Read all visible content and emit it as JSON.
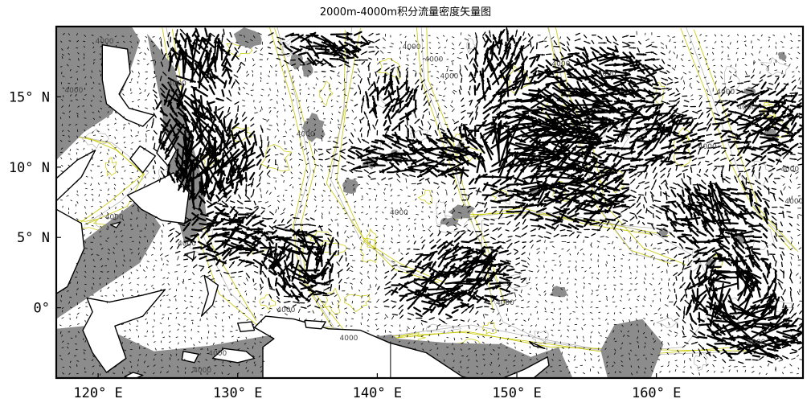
{
  "chart_data": {
    "type": "quiver",
    "title": "2000m-4000m积分流量密度矢量图",
    "xlim": [
      117,
      170.5
    ],
    "ylim": [
      -5,
      20
    ],
    "x_ticks": [
      {
        "value": 120,
        "label": "120° E"
      },
      {
        "value": 130,
        "label": "130° E"
      },
      {
        "value": 140,
        "label": "140° E"
      },
      {
        "value": 150,
        "label": "150° E"
      },
      {
        "value": 160,
        "label": "160° E"
      }
    ],
    "y_ticks": [
      {
        "value": 15,
        "label": "15° N"
      },
      {
        "value": 10,
        "label": "10° N"
      },
      {
        "value": 5,
        "label": "5° N"
      },
      {
        "value": 0,
        "label": "0°"
      }
    ],
    "contour_labels": [
      {
        "lon": 119.8,
        "lat": 18.8,
        "text": "4000"
      },
      {
        "lon": 117.6,
        "lat": 15.3,
        "text": "4000"
      },
      {
        "lon": 125.0,
        "lat": 15.8,
        "text": "4000"
      },
      {
        "lon": 120.5,
        "lat": 6.3,
        "text": "4000"
      },
      {
        "lon": 125.7,
        "lat": 4.4,
        "text": "4000"
      },
      {
        "lon": 134.2,
        "lat": 12.2,
        "text": "4000"
      },
      {
        "lon": 141.8,
        "lat": 18.4,
        "text": "4000"
      },
      {
        "lon": 143.4,
        "lat": 17.5,
        "text": "4000"
      },
      {
        "lon": 144.5,
        "lat": 16.3,
        "text": "4000"
      },
      {
        "lon": 140.9,
        "lat": 6.6,
        "text": "4000"
      },
      {
        "lon": 132.8,
        "lat": -0.3,
        "text": "4000"
      },
      {
        "lon": 127.9,
        "lat": -3.4,
        "text": "4000"
      },
      {
        "lon": 126.8,
        "lat": -4.6,
        "text": "4000"
      },
      {
        "lon": 137.3,
        "lat": -2.3,
        "text": "4000"
      },
      {
        "lon": 148.5,
        "lat": 0.2,
        "text": "4000"
      },
      {
        "lon": 152.5,
        "lat": 17.2,
        "text": "4000"
      },
      {
        "lon": 155.8,
        "lat": 16.5,
        "text": "4000"
      },
      {
        "lon": 163.0,
        "lat": 11.3,
        "text": "4000"
      },
      {
        "lon": 164.3,
        "lat": 15.2,
        "text": "4000"
      },
      {
        "lon": 165.8,
        "lat": 14.1,
        "text": "4000"
      },
      {
        "lon": 168.9,
        "lat": 9.7,
        "text": "4000"
      },
      {
        "lon": 169.2,
        "lat": 7.4,
        "text": "4000"
      },
      {
        "lon": 166.5,
        "lat": -2.6,
        "text": "4000"
      }
    ],
    "colors": {
      "land": "#ffffff",
      "shallow_shading": "#8c8c8c",
      "contour_4000": "#c8c800",
      "contour_thin": "#b4b4b4",
      "vectors": "#000000",
      "frame": "#000000"
    }
  }
}
